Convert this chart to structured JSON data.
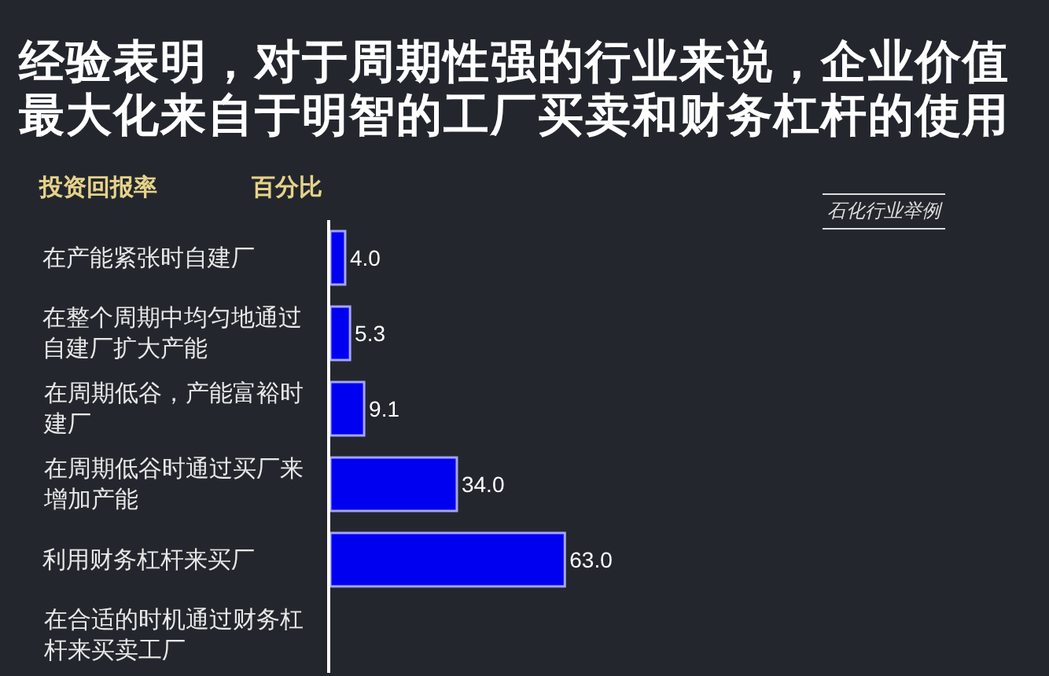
{
  "chart_data": {
    "type": "bar",
    "orientation": "horizontal",
    "title": "经验表明，对于周期性强的行业来说，企业价值最大化来自于明智的工厂买卖和财务杠杆的使用",
    "ylabel": "投资回报率",
    "xlabel": "百分比",
    "annotations": [
      "石化行业举例"
    ],
    "categories": [
      "在产能紧张时自建厂",
      "在整个周期中均匀地通过自建厂扩大产能",
      "在周期低谷，产能富裕时建厂",
      "在周期低谷时通过买厂来增加产能",
      "利用财务杠杆来买厂",
      "在合适的时机通过财务杠杆来买卖工厂"
    ],
    "values": [
      4.0,
      5.3,
      9.1,
      34.0,
      63.0,
      null
    ],
    "value_labels": [
      "4.0",
      "5.3",
      "9.1",
      "34.0",
      "63.0",
      null
    ],
    "color": "#0000f0",
    "tick_labels": "y"
  }
}
